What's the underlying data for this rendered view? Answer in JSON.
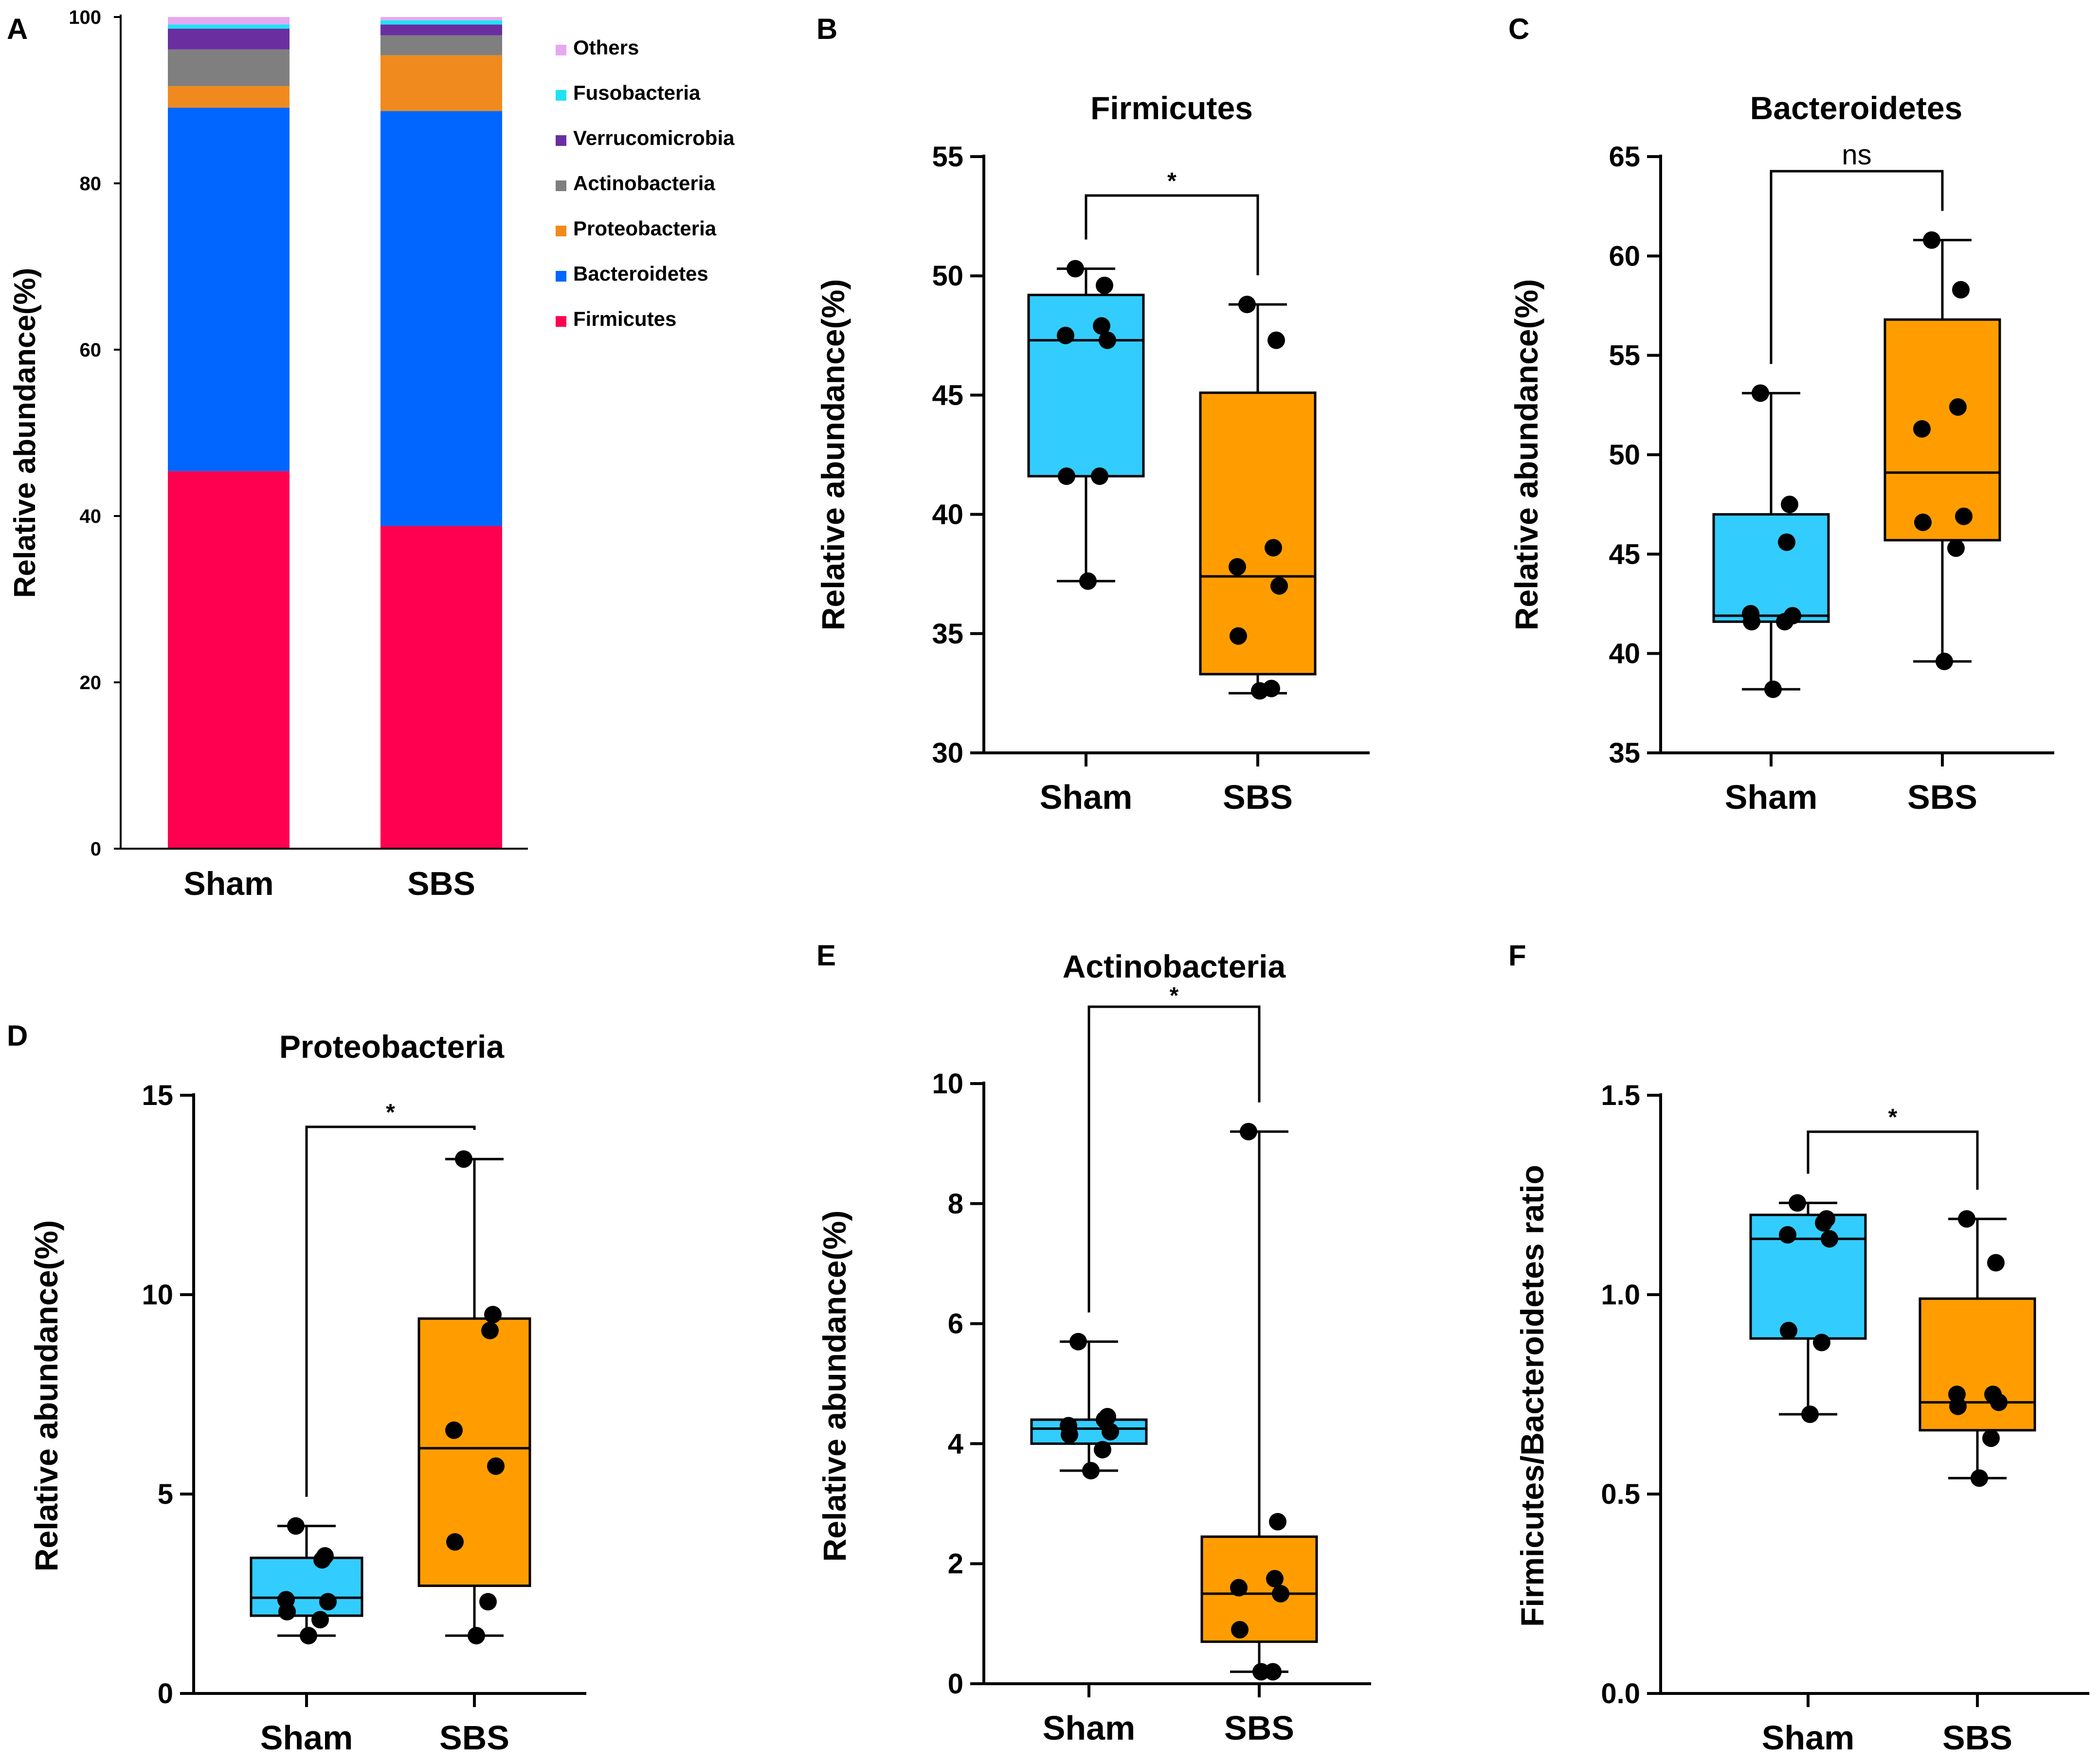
{
  "colors": {
    "firmicutes": "#ff0050",
    "bacteroidetes": "#0066ff",
    "proteobacteria": "#f08a1e",
    "actinobacteria": "#7f7f7f",
    "verrucomicrobia": "#6a2ea1",
    "fusobacteria": "#1ee3f5",
    "others": "#e6a8f0",
    "sham_box": "#33ccff",
    "sbs_box": "#ff9d00"
  },
  "chart_data": [
    {
      "panel": "A",
      "type": "bar",
      "stacked": true,
      "title": "",
      "xlabel": "",
      "ylabel": "Relative abundance(%)",
      "ylim": [
        0,
        100
      ],
      "yticks": [
        "0",
        "20",
        "40",
        "60",
        "80",
        "100"
      ],
      "categories": [
        "Sham",
        "SBS"
      ],
      "legend_position": "right",
      "series": [
        {
          "name": "Firmicutes",
          "color_key": "firmicutes",
          "values": [
            45.4,
            38.8
          ]
        },
        {
          "name": "Bacteroidetes",
          "color_key": "bacteroidetes",
          "values": [
            43.7,
            49.9
          ]
        },
        {
          "name": "Proteobacteria",
          "color_key": "proteobacteria",
          "values": [
            2.6,
            6.7
          ]
        },
        {
          "name": "Actinobacteria",
          "color_key": "actinobacteria",
          "values": [
            4.4,
            2.4
          ]
        },
        {
          "name": "Verrucomicrobia",
          "color_key": "verrucomicrobia",
          "values": [
            2.5,
            1.3
          ]
        },
        {
          "name": "Fusobacteria",
          "color_key": "fusobacteria",
          "values": [
            0.5,
            0.5
          ]
        },
        {
          "name": "Others",
          "color_key": "others",
          "values": [
            0.9,
            0.4
          ]
        }
      ]
    },
    {
      "panel": "B",
      "type": "box",
      "title": "Firmicutes",
      "xlabel": "",
      "ylabel": "Relative abundance(%)",
      "ylim": [
        30,
        55
      ],
      "yticks": [
        "30",
        "35",
        "40",
        "45",
        "50",
        "55"
      ],
      "categories": [
        "Sham",
        "SBS"
      ],
      "significance": "*",
      "groups": [
        {
          "name": "Sham",
          "color_key": "sham_box",
          "min": 37.2,
          "q1": 41.6,
          "median": 47.3,
          "q3": 49.2,
          "max": 50.3,
          "points": [
            50.3,
            49.6,
            47.9,
            47.5,
            47.3,
            41.6,
            41.6,
            37.2
          ]
        },
        {
          "name": "SBS",
          "color_key": "sbs_box",
          "min": 32.5,
          "q1": 33.3,
          "median": 37.4,
          "q3": 45.1,
          "max": 48.8,
          "points": [
            48.8,
            47.3,
            38.6,
            37.8,
            37.0,
            34.9,
            32.7,
            32.6
          ]
        }
      ]
    },
    {
      "panel": "C",
      "type": "box",
      "title": "Bacteroidetes",
      "xlabel": "",
      "ylabel": "Relative abundance(%)",
      "ylim": [
        35,
        65
      ],
      "yticks": [
        "35",
        "40",
        "45",
        "50",
        "55",
        "60",
        "65"
      ],
      "categories": [
        "Sham",
        "SBS"
      ],
      "significance": "ns",
      "groups": [
        {
          "name": "Sham",
          "color_key": "sham_box",
          "min": 38.2,
          "q1": 41.6,
          "median": 41.9,
          "q3": 47.0,
          "max": 53.1,
          "points": [
            53.1,
            47.5,
            45.6,
            42.0,
            41.9,
            41.6,
            41.6,
            38.2
          ]
        },
        {
          "name": "SBS",
          "color_key": "sbs_box",
          "min": 39.6,
          "q1": 45.7,
          "median": 49.1,
          "q3": 56.8,
          "max": 60.8,
          "points": [
            60.8,
            58.3,
            52.4,
            51.3,
            46.9,
            46.6,
            45.3,
            39.6
          ]
        }
      ]
    },
    {
      "panel": "D",
      "type": "box",
      "title": "Proteobacteria",
      "xlabel": "",
      "ylabel": "Relative abundance(%)",
      "ylim": [
        0,
        15
      ],
      "yticks": [
        "0",
        "5",
        "10",
        "15"
      ],
      "categories": [
        "Sham",
        "SBS"
      ],
      "significance": "*",
      "groups": [
        {
          "name": "Sham",
          "color_key": "sham_box",
          "min": 1.45,
          "q1": 1.95,
          "median": 2.4,
          "q3": 3.4,
          "max": 4.2,
          "points": [
            4.2,
            3.45,
            3.35,
            2.35,
            2.3,
            2.05,
            1.85,
            1.45
          ]
        },
        {
          "name": "SBS",
          "color_key": "sbs_box",
          "min": 1.45,
          "q1": 2.7,
          "median": 6.15,
          "q3": 9.4,
          "max": 13.4,
          "points": [
            13.4,
            9.5,
            9.1,
            6.6,
            5.7,
            3.8,
            2.3,
            1.45
          ]
        }
      ]
    },
    {
      "panel": "E",
      "type": "box",
      "title": "Actinobacteria",
      "xlabel": "",
      "ylabel": "Relative abundance(%)",
      "ylim": [
        0,
        10
      ],
      "yticks": [
        "0",
        "2",
        "4",
        "6",
        "8",
        "10"
      ],
      "categories": [
        "Sham",
        "SBS"
      ],
      "significance": "*",
      "groups": [
        {
          "name": "Sham",
          "color_key": "sham_box",
          "min": 3.55,
          "q1": 4.0,
          "median": 4.25,
          "q3": 4.4,
          "max": 5.7,
          "points": [
            5.7,
            4.45,
            4.4,
            4.3,
            4.2,
            4.15,
            3.9,
            3.55
          ]
        },
        {
          "name": "SBS",
          "color_key": "sbs_box",
          "min": 0.2,
          "q1": 0.7,
          "median": 1.5,
          "q3": 2.45,
          "max": 9.2,
          "points": [
            9.2,
            2.7,
            1.75,
            1.6,
            1.5,
            0.9,
            0.2,
            0.2
          ]
        }
      ]
    },
    {
      "panel": "F",
      "type": "box",
      "title": "",
      "xlabel": "",
      "ylabel": "Firmicutes/Bacteroidetes ratio",
      "ylim": [
        0.0,
        1.5
      ],
      "yticks": [
        "0.0",
        "0.5",
        "1.0",
        "1.5"
      ],
      "categories": [
        "Sham",
        "SBS"
      ],
      "significance": "*",
      "groups": [
        {
          "name": "Sham",
          "color_key": "sham_box",
          "min": 0.7,
          "q1": 0.89,
          "median": 1.14,
          "q3": 1.2,
          "max": 1.23,
          "points": [
            1.23,
            1.19,
            1.18,
            1.15,
            1.14,
            0.91,
            0.88,
            0.7
          ]
        },
        {
          "name": "SBS",
          "color_key": "sbs_box",
          "min": 0.54,
          "q1": 0.66,
          "median": 0.73,
          "q3": 0.99,
          "max": 1.19,
          "points": [
            1.19,
            1.08,
            0.75,
            0.75,
            0.73,
            0.72,
            0.64,
            0.54
          ]
        }
      ]
    }
  ]
}
